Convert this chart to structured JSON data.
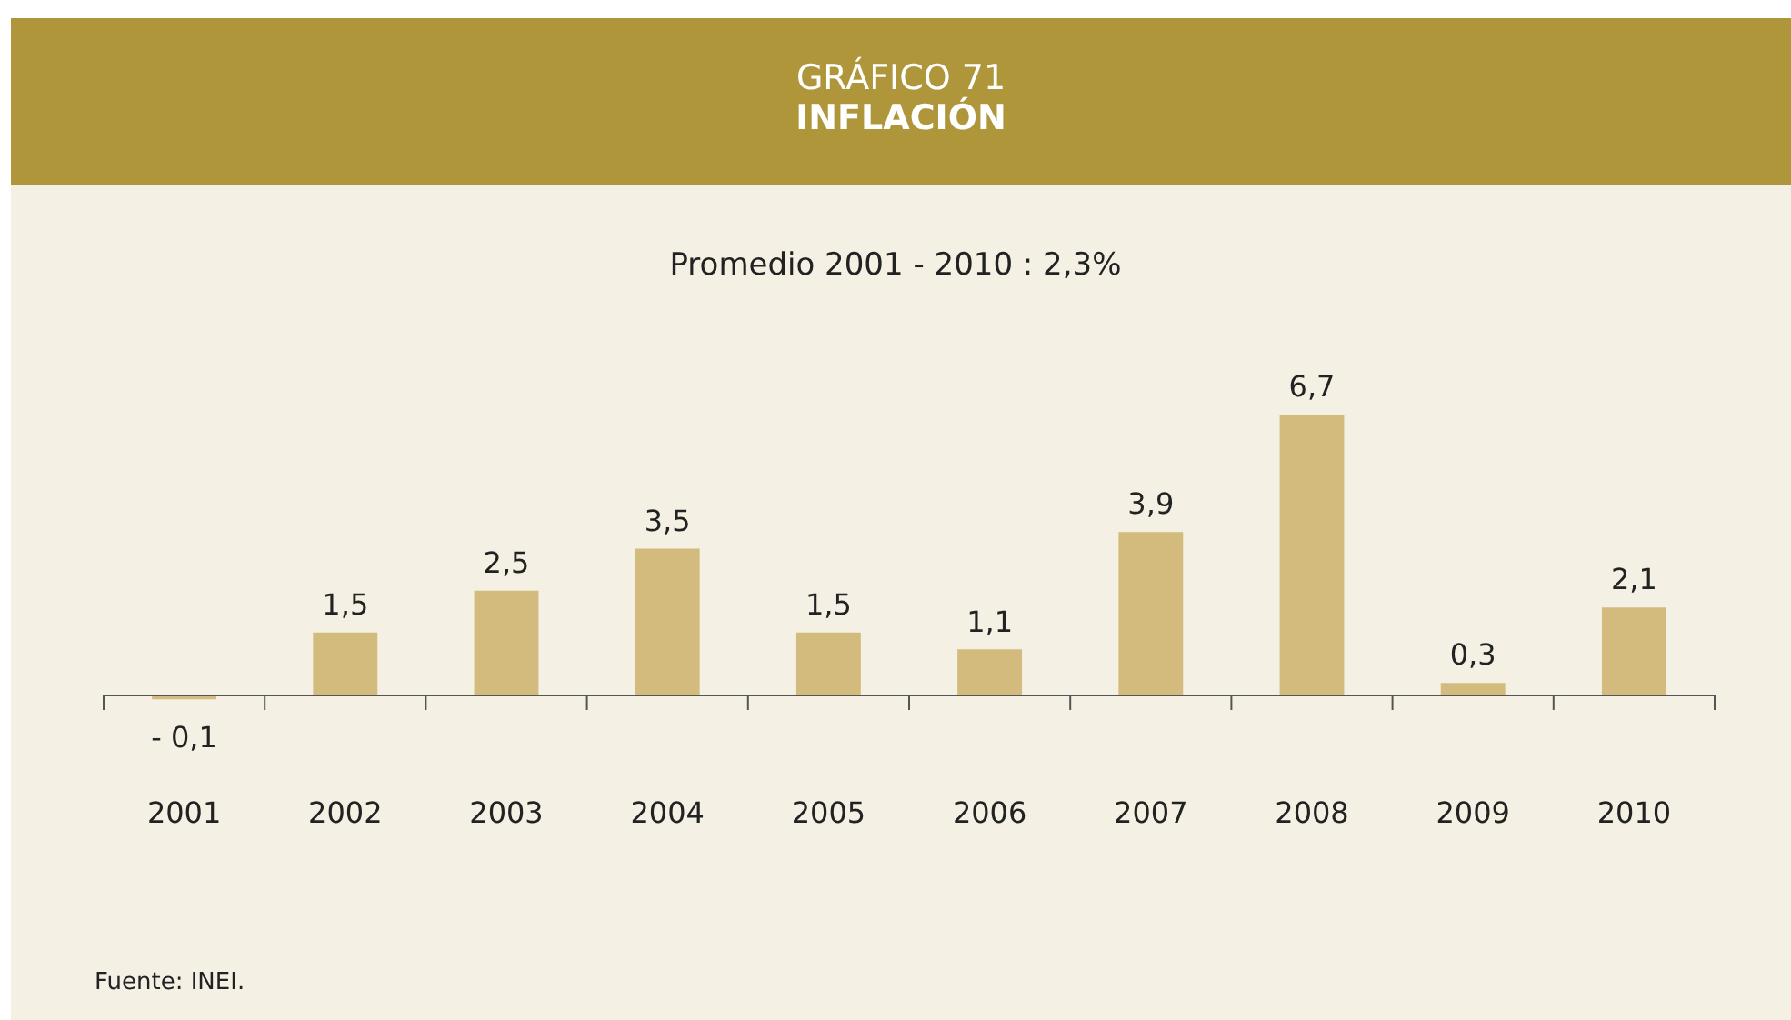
{
  "chart_data": {
    "type": "bar",
    "title": "GRÁFICO 71",
    "subtitle": "INFLACIÓN",
    "annotations": [
      "Promedio 2001 - 2010 : 2,3%",
      "Fuente: INEI."
    ],
    "categories": [
      "2001",
      "2002",
      "2003",
      "2004",
      "2005",
      "2006",
      "2007",
      "2008",
      "2009",
      "2010"
    ],
    "values": [
      -0.1,
      1.5,
      2.5,
      3.5,
      1.5,
      1.1,
      3.9,
      6.7,
      0.3,
      2.1
    ],
    "value_labels": [
      "- 0,1",
      "1,5",
      "2,5",
      "3,5",
      "1,5",
      "1,1",
      "3,9",
      "6,7",
      "0,3",
      "2,1"
    ],
    "color": "#d2bb7c"
  }
}
